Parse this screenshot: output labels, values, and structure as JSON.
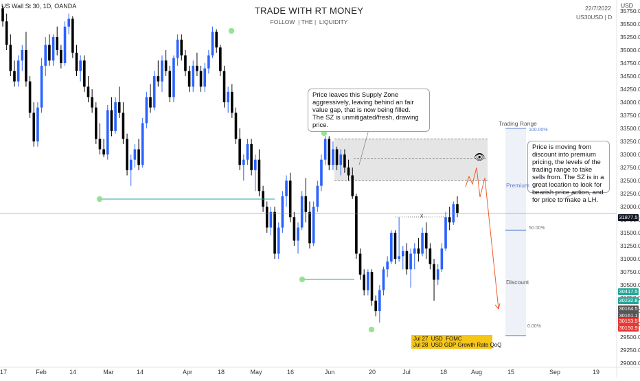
{
  "header": {
    "symbol_line": "US Wall St 30, 1D, OANDA",
    "title": "TRADE WITH RT MONEY",
    "subtitle": "FOLLOW  | THE |  LIQUIDITY",
    "date": "22/7/2022",
    "ticker": "US30USD | D",
    "currency": "USD"
  },
  "annotations": {
    "supply_zone_note": "Price leaves this Supply Zone aggressively, leaving behind an fair value gap, that is now being filled.\nThe SZ is unmitigated/fresh, drawing price.",
    "range_note": "Price is moving from discount into premium pricing, the levels of the trading range to take sells from.  The SZ is in a great location to look for bearish price action, and for price to make a LH.",
    "events": [
      "Jul 27  USD  FOMC",
      "Jul 28  USD GDP Growth Rate QoQ"
    ],
    "trading_range_title": "Trading Range",
    "premium_label": "Premium",
    "discount_label": "Discount",
    "range_levels": [
      "100.00%",
      "50.00%",
      "0.00%"
    ],
    "cross_mark": "x"
  },
  "colors": {
    "up": "#2962ff",
    "down": "#000000",
    "zone": "#e0e0e0",
    "green_dot": "#8be08b",
    "teal_line": "#26a69a",
    "projection": "#f05a28",
    "range_fill": "#eef1f7"
  },
  "price_tags": [
    {
      "label": "31877.5",
      "color": "#131722"
    },
    {
      "label": "30417.5",
      "color": "#26a69a"
    },
    {
      "label": "30232.8",
      "color": "#26a69a"
    },
    {
      "label": "30164.5",
      "color": "#555555"
    },
    {
      "label": "30161.1",
      "color": "#555555"
    },
    {
      "label": "30153.5",
      "color": "#e53935"
    },
    {
      "label": "30150.9",
      "color": "#e53935"
    }
  ],
  "chart_data": {
    "type": "candlestick",
    "title": "TRADE WITH RT MONEY",
    "x_ticks": [
      "17",
      "Feb",
      "14",
      "Mar",
      "14",
      "Apr",
      "18",
      "May",
      "16",
      "Jun",
      "20",
      "Jul",
      "18",
      "Aug",
      "15",
      "Sep",
      "19"
    ],
    "y_ticks": [
      35750,
      35500,
      35250,
      35000,
      34750,
      34500,
      34250,
      34000,
      33750,
      33500,
      33250,
      33000,
      32750,
      32500,
      32250,
      32000,
      31750,
      31500,
      31250,
      31000,
      30750,
      30500,
      30250,
      30000,
      29750,
      29500,
      29250,
      29000
    ],
    "ylim": [
      28950,
      35960
    ],
    "current_price": 31877.5,
    "supply_zone": [
      32500,
      33300
    ],
    "fvg_line": 32930,
    "trading_range": {
      "high": 33500,
      "mid": 31550,
      "low": 29530
    },
    "candles": [
      [
        35800,
        35850,
        35450,
        35550
      ],
      [
        35550,
        35700,
        35000,
        35100
      ],
      [
        35100,
        35300,
        34500,
        34600
      ],
      [
        34600,
        34800,
        34300,
        34400
      ],
      [
        34400,
        34900,
        34300,
        34800
      ],
      [
        34800,
        35100,
        34600,
        35000
      ],
      [
        35000,
        35350,
        34300,
        34400
      ],
      [
        34400,
        34500,
        33700,
        33800
      ],
      [
        33800,
        34000,
        33150,
        33250
      ],
      [
        33250,
        34000,
        33150,
        33900
      ],
      [
        33900,
        34850,
        33800,
        34700
      ],
      [
        34700,
        35250,
        34500,
        35100
      ],
      [
        35100,
        35300,
        34700,
        34800
      ],
      [
        34800,
        35300,
        34700,
        35250
      ],
      [
        35250,
        35450,
        34900,
        35000
      ],
      [
        35000,
        35100,
        34650,
        34750
      ],
      [
        34750,
        35550,
        34700,
        35450
      ],
      [
        35450,
        35700,
        35300,
        35600
      ],
      [
        35600,
        35650,
        34850,
        34950
      ],
      [
        34950,
        35100,
        34500,
        34600
      ],
      [
        34600,
        34900,
        34400,
        34800
      ],
      [
        34800,
        34900,
        34200,
        34300
      ],
      [
        34300,
        34500,
        34000,
        34100
      ],
      [
        34100,
        34250,
        33800,
        33900
      ],
      [
        33900,
        34000,
        33200,
        33300
      ],
      [
        33300,
        33600,
        33000,
        33100
      ],
      [
        33100,
        33300,
        32950,
        33000
      ],
      [
        33000,
        33950,
        32900,
        33850
      ],
      [
        33850,
        34100,
        33350,
        33450
      ],
      [
        33450,
        34100,
        33400,
        34000
      ],
      [
        34000,
        34300,
        33700,
        33800
      ],
      [
        33800,
        34000,
        33200,
        33300
      ],
      [
        33300,
        33400,
        32600,
        32700
      ],
      [
        32700,
        33000,
        32400,
        32900
      ],
      [
        32900,
        33200,
        32750,
        33100
      ],
      [
        33100,
        33300,
        32700,
        32800
      ],
      [
        32800,
        33700,
        32750,
        33600
      ],
      [
        33600,
        34200,
        33500,
        34100
      ],
      [
        34100,
        34350,
        33800,
        33900
      ],
      [
        33900,
        34600,
        33850,
        34500
      ],
      [
        34500,
        34800,
        34300,
        34400
      ],
      [
        34400,
        34900,
        34200,
        34800
      ],
      [
        34800,
        35000,
        34500,
        34600
      ],
      [
        34600,
        34700,
        34000,
        34100
      ],
      [
        34100,
        34900,
        34000,
        34850
      ],
      [
        34850,
        35300,
        34700,
        35200
      ],
      [
        35200,
        35300,
        34800,
        34900
      ],
      [
        34900,
        35000,
        34500,
        34600
      ],
      [
        34600,
        34700,
        34200,
        34300
      ],
      [
        34300,
        34800,
        34200,
        34700
      ],
      [
        34700,
        34950,
        34500,
        34600
      ],
      [
        34600,
        34700,
        34200,
        34300
      ],
      [
        34300,
        34750,
        34200,
        34650
      ],
      [
        34650,
        35000,
        34550,
        34900
      ],
      [
        34900,
        35450,
        34850,
        35350
      ],
      [
        35350,
        35400,
        34950,
        35050
      ],
      [
        35050,
        35100,
        34500,
        34600
      ],
      [
        34600,
        34700,
        33900,
        34000
      ],
      [
        34000,
        34300,
        33800,
        34200
      ],
      [
        34200,
        34350,
        33700,
        33800
      ],
      [
        33800,
        33900,
        33200,
        33300
      ],
      [
        33300,
        33500,
        32700,
        32800
      ],
      [
        32800,
        33000,
        32500,
        32900
      ],
      [
        32900,
        33300,
        32800,
        33200
      ],
      [
        33200,
        33300,
        32600,
        32700
      ],
      [
        32700,
        33000,
        32300,
        32900
      ],
      [
        32900,
        33100,
        32200,
        32300
      ],
      [
        32300,
        32400,
        31900,
        32000
      ],
      [
        32000,
        32100,
        31500,
        31600
      ],
      [
        31600,
        32000,
        31450,
        31900
      ],
      [
        31900,
        32000,
        31000,
        31100
      ],
      [
        31100,
        31700,
        31000,
        31600
      ],
      [
        31600,
        32300,
        31500,
        32200
      ],
      [
        32200,
        32600,
        32000,
        32500
      ],
      [
        32500,
        32650,
        31700,
        31800
      ],
      [
        31800,
        31900,
        31250,
        31350
      ],
      [
        31350,
        31700,
        31100,
        31600
      ],
      [
        31600,
        32300,
        31550,
        32200
      ],
      [
        32200,
        32550,
        31700,
        31900
      ],
      [
        31900,
        32100,
        31200,
        31300
      ],
      [
        31300,
        32100,
        31250,
        32000
      ],
      [
        32000,
        32500,
        31900,
        32400
      ],
      [
        32400,
        33000,
        32300,
        32900
      ],
      [
        32900,
        33350,
        32800,
        33300
      ],
      [
        33300,
        33350,
        32700,
        32800
      ],
      [
        32800,
        33250,
        32700,
        33100
      ],
      [
        33100,
        33150,
        32700,
        32800
      ],
      [
        32800,
        33100,
        32600,
        33000
      ],
      [
        33000,
        33100,
        32650,
        32750
      ],
      [
        32750,
        32900,
        32500,
        32600
      ],
      [
        32600,
        32750,
        32150,
        32200
      ],
      [
        32200,
        32250,
        31000,
        31100
      ],
      [
        31100,
        31200,
        30600,
        30700
      ],
      [
        30700,
        30800,
        30300,
        30400
      ],
      [
        30400,
        30800,
        30300,
        30750
      ],
      [
        30750,
        30800,
        30100,
        30200
      ],
      [
        30200,
        30300,
        29900,
        30000
      ],
      [
        30000,
        30500,
        29780,
        30400
      ],
      [
        30400,
        30850,
        30300,
        30800
      ],
      [
        30800,
        31050,
        30650,
        30950
      ],
      [
        30950,
        31550,
        30900,
        31500
      ],
      [
        31500,
        31550,
        30900,
        31000
      ],
      [
        31000,
        31800,
        30950,
        31050
      ],
      [
        31050,
        31250,
        30800,
        31150
      ],
      [
        31150,
        31300,
        30700,
        30800
      ],
      [
        30800,
        31200,
        30450,
        31100
      ],
      [
        31100,
        31300,
        30800,
        31200
      ],
      [
        31200,
        31400,
        30950,
        31100
      ],
      [
        31100,
        31600,
        31050,
        31500
      ],
      [
        31500,
        31700,
        31000,
        31200
      ],
      [
        31200,
        31300,
        30800,
        30900
      ],
      [
        30900,
        31000,
        30200,
        30600
      ],
      [
        30600,
        30900,
        30500,
        30800
      ],
      [
        30800,
        31300,
        30750,
        31200
      ],
      [
        31200,
        31900,
        31150,
        31800
      ],
      [
        31800,
        32000,
        31550,
        31700
      ],
      [
        31700,
        32100,
        31650,
        32050
      ],
      [
        32050,
        32200,
        31800,
        31880
      ]
    ]
  }
}
